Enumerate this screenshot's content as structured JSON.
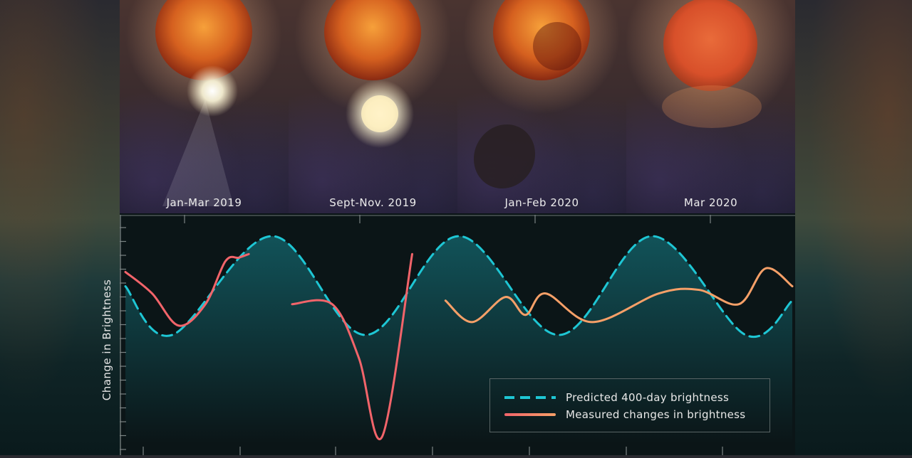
{
  "panels": [
    {
      "label": "Jan-Mar 2019"
    },
    {
      "label": "Sept-Nov. 2019"
    },
    {
      "label": "Jan-Feb 2020"
    },
    {
      "label": "Mar 2020"
    }
  ],
  "colors": {
    "predicted": "#1ec6d4",
    "measured_start": "#f2646a",
    "measured_end": "#f7a068"
  },
  "chart_data": {
    "type": "line",
    "ylabel": "Change in Brightness",
    "xlabel": "",
    "grid": false,
    "legend_position": "bottom-right",
    "series": [
      {
        "name": "Predicted 400-day brightness",
        "style": "dashed",
        "points": [
          [
            0,
            0.2
          ],
          [
            0.07,
            -0.48
          ],
          [
            0.22,
            0.9
          ],
          [
            0.36,
            -0.48
          ],
          [
            0.5,
            0.9
          ],
          [
            0.65,
            -0.48
          ],
          [
            0.79,
            0.9
          ],
          [
            0.93,
            -0.48
          ],
          [
            1.0,
            0.0
          ]
        ]
      },
      {
        "name": "Measured changes in brightness",
        "style": "solid",
        "segments": [
          [
            [
              0,
              0.4
            ],
            [
              0.04,
              0.1
            ],
            [
              0.08,
              -0.35
            ],
            [
              0.12,
              -0.05
            ],
            [
              0.15,
              0.55
            ],
            [
              0.17,
              0.6
            ],
            [
              0.185,
              0.65
            ]
          ],
          [
            [
              0.25,
              -0.05
            ],
            [
              0.31,
              -0.05
            ],
            [
              0.35,
              -0.8
            ],
            [
              0.385,
              -1.9
            ],
            [
              0.43,
              0.65
            ]
          ],
          [
            [
              0.48,
              0.0
            ],
            [
              0.52,
              -0.3
            ],
            [
              0.57,
              0.05
            ],
            [
              0.6,
              -0.2
            ],
            [
              0.63,
              0.1
            ],
            [
              0.7,
              -0.3
            ],
            [
              0.8,
              0.1
            ],
            [
              0.86,
              0.15
            ],
            [
              0.92,
              -0.05
            ],
            [
              0.96,
              0.45
            ],
            [
              1.0,
              0.2
            ]
          ]
        ]
      }
    ]
  }
}
